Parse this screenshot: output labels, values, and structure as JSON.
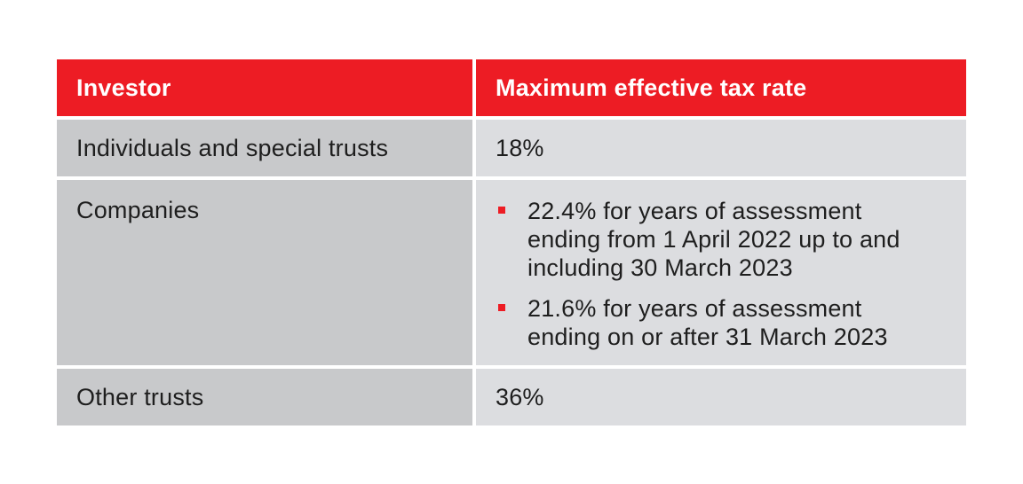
{
  "table": {
    "header": {
      "investor": "Investor",
      "rate": "Maximum effective tax rate"
    },
    "rows": [
      {
        "investor": "Individuals and special trusts",
        "rate": "18%"
      },
      {
        "investor": "Companies",
        "rate_items": [
          {
            "line1": "22.4% for years of assessment",
            "line2": "ending from 1 April 2022 up to and",
            "line3": "including 30 March 2023"
          },
          {
            "line1": "21.6% for years of assessment",
            "line2": "ending on or after 31 March 2023"
          }
        ]
      },
      {
        "investor": "Other trusts",
        "rate": "36%"
      }
    ]
  },
  "colors": {
    "header_background": "#ed1c24",
    "left_column_background": "#c8c9cb",
    "right_column_background": "#dcdde0",
    "bullet": "#ed1c24"
  },
  "icons": {
    "bullet": "square-bullet-icon"
  }
}
